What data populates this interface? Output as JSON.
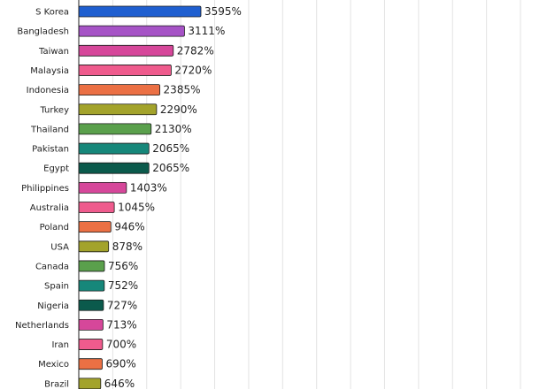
{
  "chart_data": {
    "type": "bar",
    "orientation": "horizontal",
    "title": "",
    "xlabel": "",
    "ylabel": "",
    "grid": true,
    "value_suffix": "%",
    "xlim": [
      0,
      13000
    ],
    "categories": [
      "S Korea",
      "Bangladesh",
      "Taiwan",
      "Malaysia",
      "Indonesia",
      "Turkey",
      "Thailand",
      "Pakistan",
      "Egypt",
      "Philippines",
      "Australia",
      "Poland",
      "USA",
      "Canada",
      "Spain",
      "Nigeria",
      "Netherlands",
      "Iran",
      "Mexico",
      "Brazil"
    ],
    "values": [
      3595,
      3111,
      2782,
      2720,
      2385,
      2290,
      2130,
      2065,
      2065,
      1403,
      1045,
      946,
      878,
      756,
      752,
      727,
      713,
      700,
      690,
      646
    ],
    "value_labels": [
      "3595%",
      "3111%",
      "2782%",
      "2720%",
      "2385%",
      "2290%",
      "2130%",
      "2065%",
      "2065%",
      "1403%",
      "1045%",
      "946%",
      "878%",
      "756%",
      "752%",
      "727%",
      "713%",
      "700%",
      "690%",
      "646%"
    ],
    "colors": [
      "#1f5fd0",
      "#a653c6",
      "#d6479a",
      "#ef5b8d",
      "#eb7044",
      "#a3a32b",
      "#5aa04c",
      "#16877a",
      "#0b5a4c",
      "#d6479a",
      "#ef5b8d",
      "#eb7044",
      "#a3a32b",
      "#5aa04c",
      "#16877a",
      "#0b5a4c",
      "#d6479a",
      "#ef5b8d",
      "#eb7044",
      "#a3a32b"
    ]
  }
}
